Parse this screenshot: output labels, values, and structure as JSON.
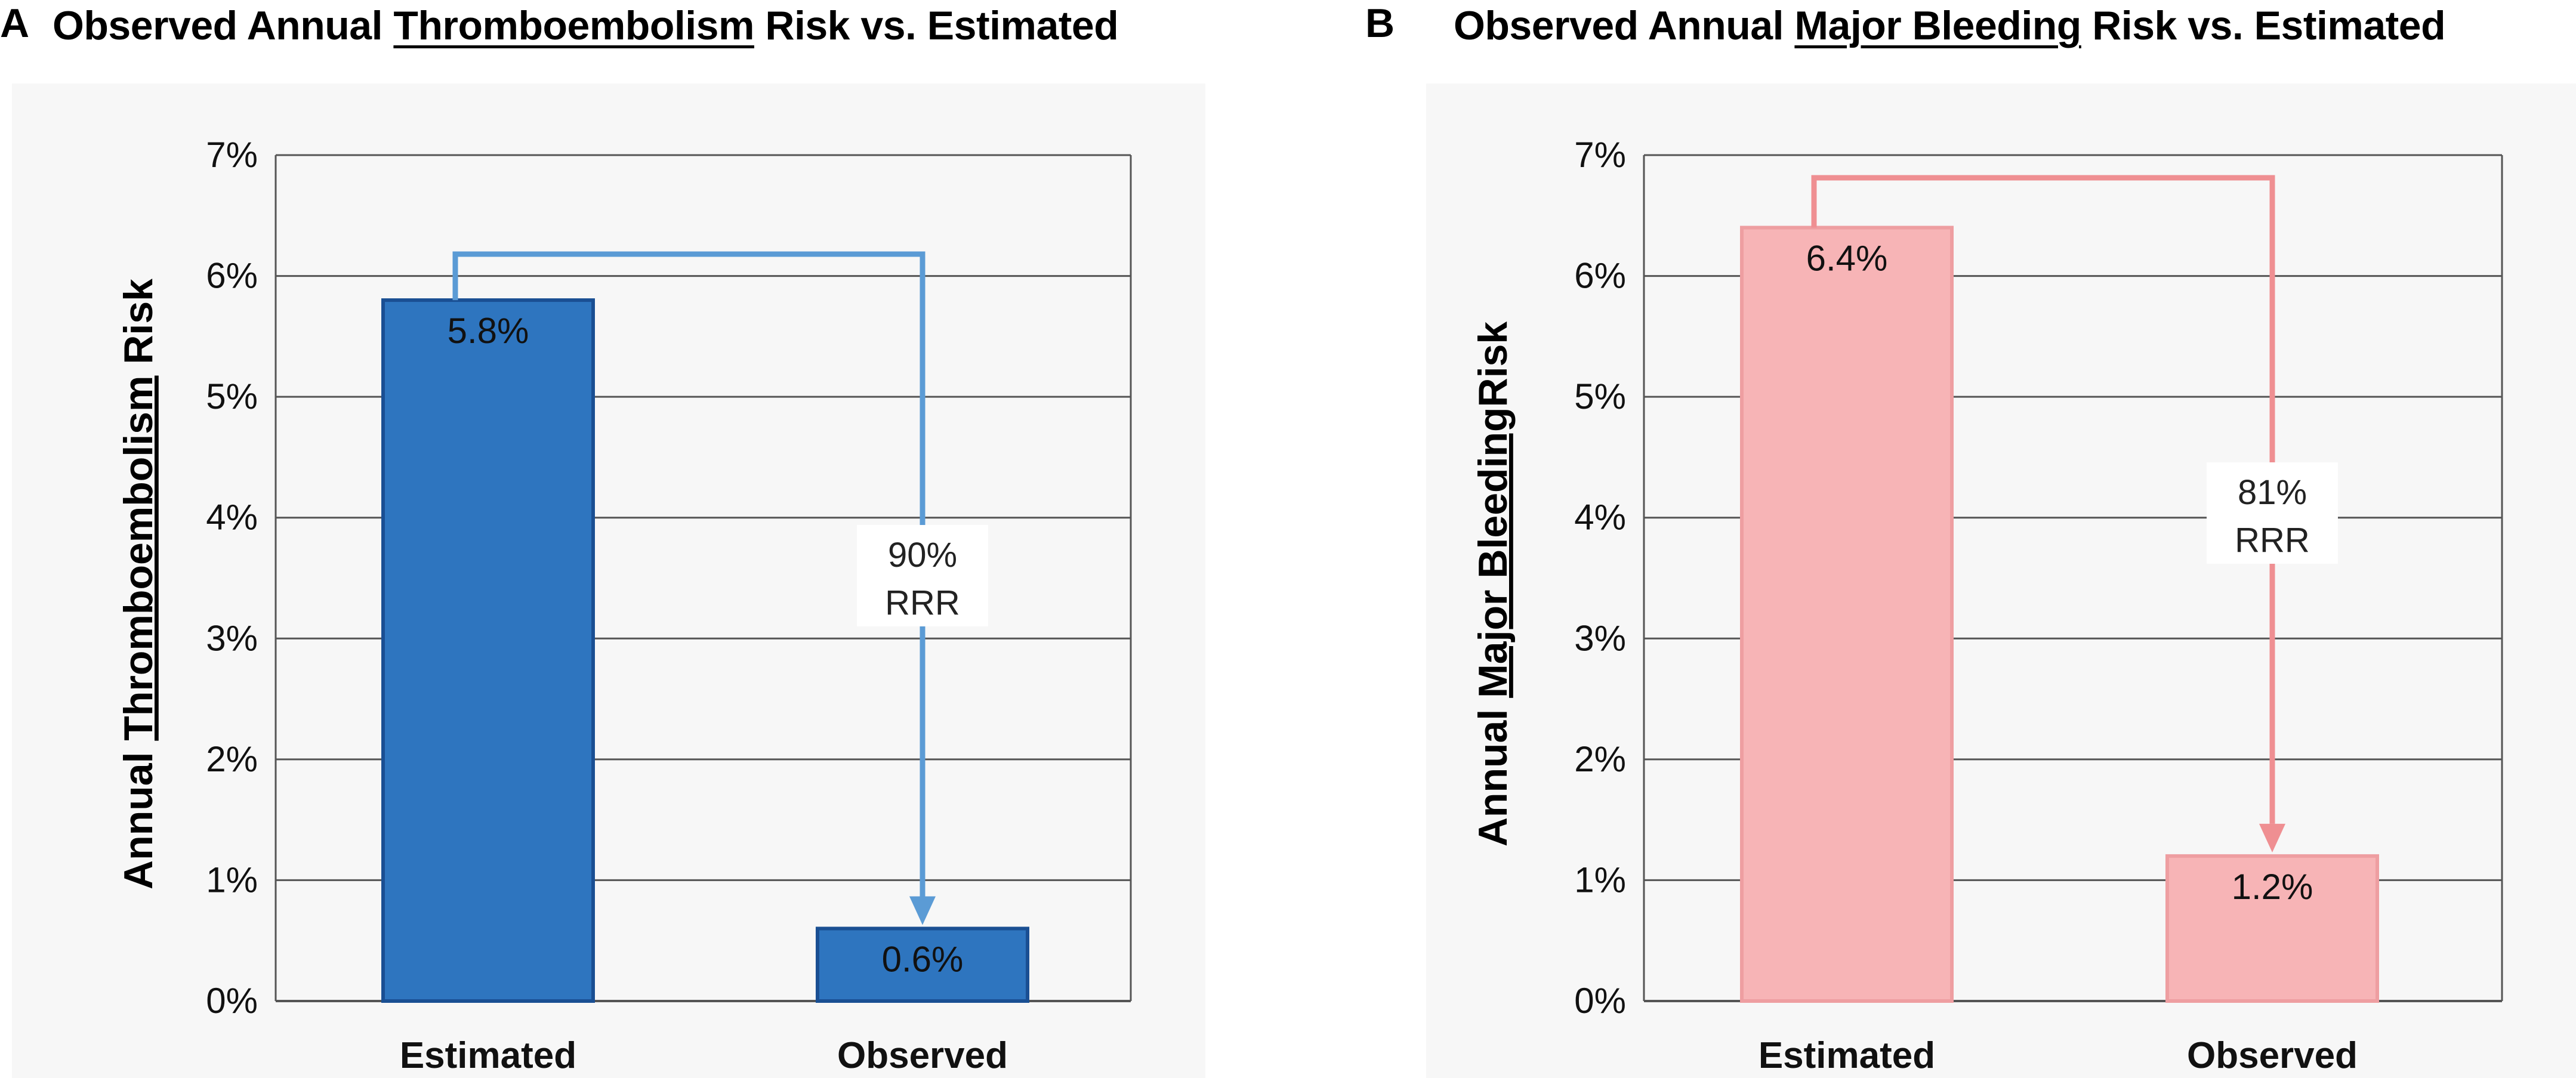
{
  "chart_data": [
    {
      "type": "bar",
      "panel": "A",
      "title_parts": [
        "Observed Annual ",
        "Thromboembolism",
        " Risk vs. Estimated"
      ],
      "ylabel_parts": [
        "Annual ",
        "Thromboembolism",
        " Risk"
      ],
      "categories": [
        "Estimated",
        "Observed"
      ],
      "values": [
        5.8,
        0.6
      ],
      "value_labels": [
        "5.8%",
        "0.6%"
      ],
      "ylim": [
        0,
        7
      ],
      "yticks": [
        "0%",
        "1%",
        "2%",
        "3%",
        "4%",
        "5%",
        "6%",
        "7%"
      ],
      "annotation_lines": [
        "90%",
        "RRR"
      ],
      "grid": true,
      "colors": {
        "bar_fill": "#2e75bf",
        "bar_stroke": "#1a4f93",
        "arrow": "#5b9bd5",
        "grid": "#555555"
      }
    },
    {
      "type": "bar",
      "panel": "B",
      "title_parts": [
        "Observed Annual ",
        "Major Bleeding",
        " Risk vs.  Estimated"
      ],
      "ylabel_parts": [
        "Annual ",
        "Major Bleeding",
        "Risk"
      ],
      "categories": [
        "Estimated",
        "Observed"
      ],
      "values": [
        6.4,
        1.2
      ],
      "value_labels": [
        "6.4%",
        "1.2%"
      ],
      "ylim": [
        0,
        7
      ],
      "yticks": [
        "0%",
        "1%",
        "2%",
        "3%",
        "4%",
        "5%",
        "6%",
        "7%"
      ],
      "annotation_lines": [
        "81%",
        "RRR"
      ],
      "grid": true,
      "colors": {
        "bar_fill": "#f7b4b6",
        "bar_stroke": "#ee9ea1",
        "arrow": "#ef8f92",
        "grid": "#555555"
      }
    }
  ]
}
